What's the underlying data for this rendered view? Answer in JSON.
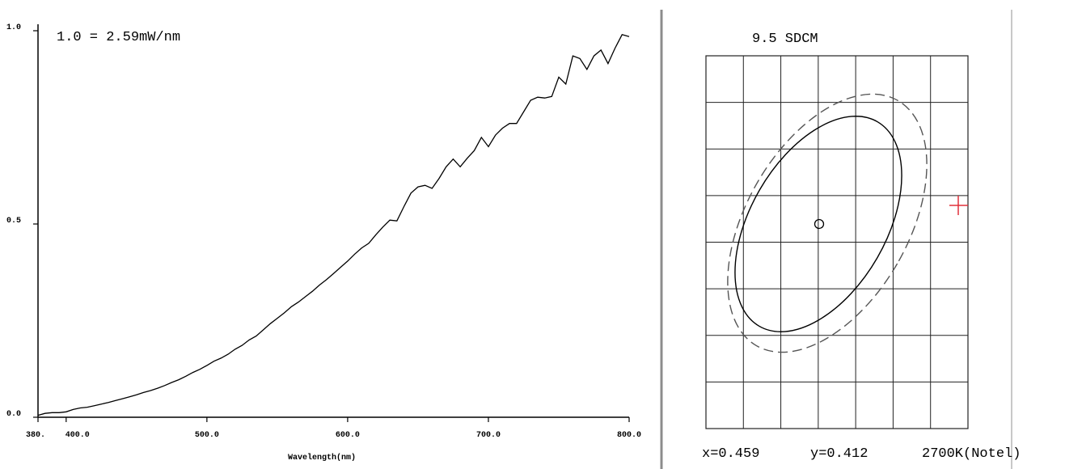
{
  "spectrum_panel": {
    "scale_note": "1.0 = 2.59mW/nm",
    "chart_data": {
      "type": "line",
      "xlabel": "Wavelength(nm)",
      "ylabel": "",
      "title": "",
      "xlim": [
        380,
        800
      ],
      "ylim": [
        0,
        1
      ],
      "x_ticks": [
        380,
        400,
        500,
        600,
        700,
        800
      ],
      "x_tick_labels": [
        "380.",
        "400.0",
        "500.0",
        "600.0",
        "700.0",
        "800.0"
      ],
      "y_ticks": [
        0,
        0.5,
        1.0
      ],
      "y_tick_labels": [
        "0.0",
        "0.5",
        "1.0"
      ],
      "grid": false,
      "series": [
        {
          "color": "#000000",
          "points": [
            [
              380,
              0.005
            ],
            [
              385,
              0.01
            ],
            [
              390,
              0.012
            ],
            [
              395,
              0.012
            ],
            [
              400,
              0.014
            ],
            [
              405,
              0.02
            ],
            [
              410,
              0.024
            ],
            [
              415,
              0.026
            ],
            [
              420,
              0.03
            ],
            [
              425,
              0.034
            ],
            [
              430,
              0.038
            ],
            [
              435,
              0.043
            ],
            [
              440,
              0.048
            ],
            [
              445,
              0.053
            ],
            [
              450,
              0.058
            ],
            [
              455,
              0.064
            ],
            [
              460,
              0.069
            ],
            [
              465,
              0.075
            ],
            [
              470,
              0.082
            ],
            [
              475,
              0.09
            ],
            [
              480,
              0.097
            ],
            [
              485,
              0.106
            ],
            [
              490,
              0.116
            ],
            [
              495,
              0.124
            ],
            [
              500,
              0.134
            ],
            [
              505,
              0.145
            ],
            [
              510,
              0.153
            ],
            [
              515,
              0.163
            ],
            [
              520,
              0.176
            ],
            [
              525,
              0.186
            ],
            [
              530,
              0.2
            ],
            [
              535,
              0.21
            ],
            [
              540,
              0.226
            ],
            [
              545,
              0.242
            ],
            [
              550,
              0.256
            ],
            [
              555,
              0.27
            ],
            [
              560,
              0.286
            ],
            [
              565,
              0.298
            ],
            [
              570,
              0.312
            ],
            [
              575,
              0.326
            ],
            [
              580,
              0.342
            ],
            [
              585,
              0.356
            ],
            [
              590,
              0.372
            ],
            [
              595,
              0.388
            ],
            [
              600,
              0.404
            ],
            [
              605,
              0.422
            ],
            [
              610,
              0.438
            ],
            [
              615,
              0.45
            ],
            [
              620,
              0.472
            ],
            [
              625,
              0.492
            ],
            [
              630,
              0.51
            ],
            [
              635,
              0.508
            ],
            [
              640,
              0.545
            ],
            [
              645,
              0.58
            ],
            [
              650,
              0.596
            ],
            [
              655,
              0.6
            ],
            [
              660,
              0.592
            ],
            [
              665,
              0.618
            ],
            [
              670,
              0.648
            ],
            [
              675,
              0.668
            ],
            [
              680,
              0.648
            ],
            [
              685,
              0.67
            ],
            [
              690,
              0.69
            ],
            [
              695,
              0.724
            ],
            [
              700,
              0.7
            ],
            [
              705,
              0.73
            ],
            [
              710,
              0.748
            ],
            [
              715,
              0.76
            ],
            [
              720,
              0.76
            ],
            [
              725,
              0.79
            ],
            [
              730,
              0.82
            ],
            [
              735,
              0.828
            ],
            [
              740,
              0.826
            ],
            [
              745,
              0.83
            ],
            [
              750,
              0.88
            ],
            [
              755,
              0.862
            ],
            [
              760,
              0.935
            ],
            [
              765,
              0.928
            ],
            [
              770,
              0.9
            ],
            [
              775,
              0.935
            ],
            [
              780,
              0.95
            ],
            [
              785,
              0.915
            ],
            [
              790,
              0.955
            ],
            [
              795,
              0.99
            ],
            [
              800,
              0.985
            ]
          ]
        }
      ]
    }
  },
  "chroma_panel": {
    "title": "9.5 SDCM",
    "readout": {
      "x_text": "x=0.459",
      "y_text": "y=0.412",
      "cct_text": "2700K(Notel)"
    },
    "chart_data": {
      "type": "scatter",
      "title": "9.5 SDCM",
      "xlabel": "",
      "ylabel": "",
      "grid": true,
      "grid_cols": 7,
      "grid_rows": 8,
      "series": [
        {
          "kind": "point",
          "x": 0.459,
          "y": 0.412,
          "color": "#000000"
        }
      ],
      "marker_color": "#e0303a",
      "ellipse_color": "#000000",
      "dashed_ellipse_color": "#555555"
    }
  },
  "colors": {
    "axis": "#000000",
    "divider": "#999999",
    "grid": "#222222"
  }
}
